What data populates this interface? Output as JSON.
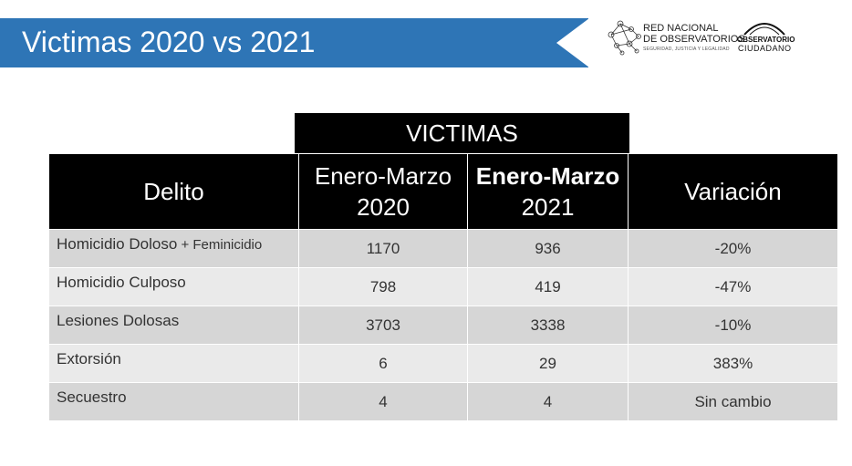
{
  "header": {
    "title": "Victimas 2020 vs 2021",
    "logo_red_line1": "RED NACIONAL",
    "logo_red_line2": "DE OBSERVATORIOS",
    "logo_red_tagline": "SEGURIDAD, JUSTICIA Y LEGALIDAD",
    "logo_obs_line1": "OBSERVATORIO",
    "logo_obs_line2": "CIUDADANO"
  },
  "table": {
    "group_header": "VICTIMAS",
    "columns": [
      "Delito",
      "Enero-Marzo 2020",
      "Enero-Marzo 2021",
      "Variación"
    ],
    "col2_line1": "Enero-Marzo",
    "col2_line2": "2020",
    "col3_line1": "Enero-Marzo",
    "col3_line2": "2021",
    "rows": [
      {
        "delito": "Homicidio Doloso",
        "delito_extra": " + Feminicidio",
        "v2020": "1170",
        "v2021": "936",
        "variacion": "-20%"
      },
      {
        "delito": "Homicidio Culposo",
        "delito_extra": "",
        "v2020": "798",
        "v2021": "419",
        "variacion": "-47%"
      },
      {
        "delito": "Lesiones Dolosas",
        "delito_extra": "",
        "v2020": "3703",
        "v2021": "3338",
        "variacion": "-10%"
      },
      {
        "delito": "Extorsión",
        "delito_extra": "",
        "v2020": "6",
        "v2021": "29",
        "variacion": "383%"
      },
      {
        "delito": "Secuestro",
        "delito_extra": "",
        "v2020": "4",
        "v2021": "4",
        "variacion": "Sin cambio"
      }
    ]
  },
  "colors": {
    "title_bar": "#2e75b6",
    "header_bg": "#000000",
    "row_dark": "#d6d6d6",
    "row_light": "#eaeaea"
  }
}
